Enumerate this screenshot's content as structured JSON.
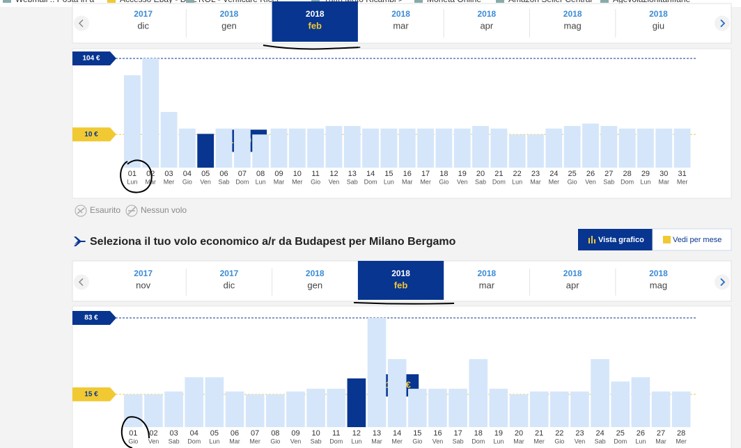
{
  "bookmarks": [
    "Webmail :: Posta in a",
    "Accesso Ebay - DHL",
    "ROL - Verificare Ricer",
    "Tutto Moto Ricambi >",
    "Moneta Online",
    "Amazon Seller Central",
    "Agevolazionitariffarie"
  ],
  "month_selector_1": {
    "months": [
      {
        "year": "2017",
        "month": "dic"
      },
      {
        "year": "2018",
        "month": "gen"
      },
      {
        "year": "2018",
        "month": "feb"
      },
      {
        "year": "2018",
        "month": "mar"
      },
      {
        "year": "2018",
        "month": "apr"
      },
      {
        "year": "2018",
        "month": "mag"
      },
      {
        "year": "2018",
        "month": "giu"
      }
    ],
    "selected": 2
  },
  "chart_data": [
    {
      "type": "bar",
      "categories": [
        "01",
        "02",
        "03",
        "04",
        "05",
        "06",
        "07",
        "08",
        "09",
        "10",
        "11",
        "12",
        "13",
        "14",
        "15",
        "16",
        "17",
        "18",
        "19",
        "20",
        "21",
        "22",
        "23",
        "24",
        "25",
        "26",
        "27",
        "28",
        "29",
        "30",
        "31"
      ],
      "weekdays": [
        "Lun",
        "Mar",
        "Mer",
        "Gio",
        "Ven",
        "Sab",
        "Dom",
        "Lun",
        "Mar",
        "Mer",
        "Gio",
        "Ven",
        "Sab",
        "Dom",
        "Lun",
        "Mar",
        "Mer",
        "Gio",
        "Ven",
        "Sab",
        "Dom",
        "Lun",
        "Mar",
        "Mer",
        "Gio",
        "Ven",
        "Sab",
        "Dom",
        "Lun",
        "Mar",
        "Mer"
      ],
      "values": [
        62,
        104,
        20,
        12,
        10.19,
        12,
        12,
        10,
        12,
        12,
        12,
        13,
        13,
        12,
        12,
        12,
        12,
        12,
        12,
        13,
        12,
        10,
        10,
        12,
        13,
        14,
        13,
        12,
        12,
        12,
        12
      ],
      "value_labels": [
        null,
        null,
        null,
        null,
        "10,19 €",
        null,
        null,
        null,
        null,
        null,
        null,
        null,
        null,
        null,
        null,
        null,
        null,
        null,
        null,
        null,
        null,
        null,
        null,
        null,
        null,
        null,
        null,
        null,
        null,
        null,
        null
      ],
      "color": "#d5e6fa",
      "highlight_color": "#073590",
      "highlight_index": 4,
      "log_scale": true,
      "ylim": [
        3.6,
        104
      ],
      "reference_lines": [
        {
          "value": 104,
          "label": "104 €",
          "color": "#073590"
        },
        {
          "value": 10,
          "label": "10 €",
          "color": "#f1c933"
        }
      ]
    },
    {
      "type": "bar",
      "categories": [
        "01",
        "02",
        "03",
        "04",
        "05",
        "06",
        "07",
        "08",
        "09",
        "10",
        "11",
        "12",
        "13",
        "14",
        "15",
        "16",
        "17",
        "18",
        "19",
        "20",
        "21",
        "22",
        "23",
        "24",
        "25",
        "26",
        "27",
        "28"
      ],
      "weekdays": [
        "Gio",
        "Ven",
        "Sab",
        "Dom",
        "Lun",
        "Mar",
        "Mer",
        "Gio",
        "Ven",
        "Sab",
        "Dom",
        "Lun",
        "Mar",
        "Mer",
        "Gio",
        "Ven",
        "Sab",
        "Dom",
        "Lun",
        "Mar",
        "Mer",
        "Gio",
        "Ven",
        "Sab",
        "Dom",
        "Lun",
        "Mar",
        "Mer"
      ],
      "values": [
        15,
        15,
        16,
        22,
        22,
        16,
        15,
        15,
        16,
        17,
        17,
        21.42,
        83,
        33,
        17,
        17,
        17,
        33,
        17,
        15,
        16,
        16,
        16,
        33,
        20,
        22,
        16,
        16
      ],
      "value_labels": [
        null,
        null,
        null,
        null,
        null,
        null,
        null,
        null,
        null,
        null,
        null,
        "21,42 €",
        null,
        null,
        null,
        null,
        null,
        null,
        null,
        null,
        null,
        null,
        null,
        null,
        null,
        null,
        null,
        null
      ],
      "color": "#d5e6fa",
      "highlight_color": "#073590",
      "highlight_index": 11,
      "log_scale": true,
      "ylim": [
        7.2,
        83
      ],
      "reference_lines": [
        {
          "value": 83,
          "label": "83 €",
          "color": "#073590"
        },
        {
          "value": 15,
          "label": "15 €",
          "color": "#f1c933"
        }
      ]
    }
  ],
  "legend": {
    "sold_out": "Esaurito",
    "no_flight": "Nessun volo"
  },
  "heading": "Seleziona il tuo volo economico a/r da Budapest per Milano Bergamo",
  "buttons": {
    "chart_view": "Vista grafico",
    "month_view": "Vedi per mese"
  },
  "month_selector_2": {
    "months": [
      {
        "year": "2017",
        "month": "nov"
      },
      {
        "year": "2017",
        "month": "dic"
      },
      {
        "year": "2018",
        "month": "gen"
      },
      {
        "year": "2018",
        "month": "feb"
      },
      {
        "year": "2018",
        "month": "mar"
      },
      {
        "year": "2018",
        "month": "apr"
      },
      {
        "year": "2018",
        "month": "mag"
      }
    ],
    "selected": 3
  }
}
